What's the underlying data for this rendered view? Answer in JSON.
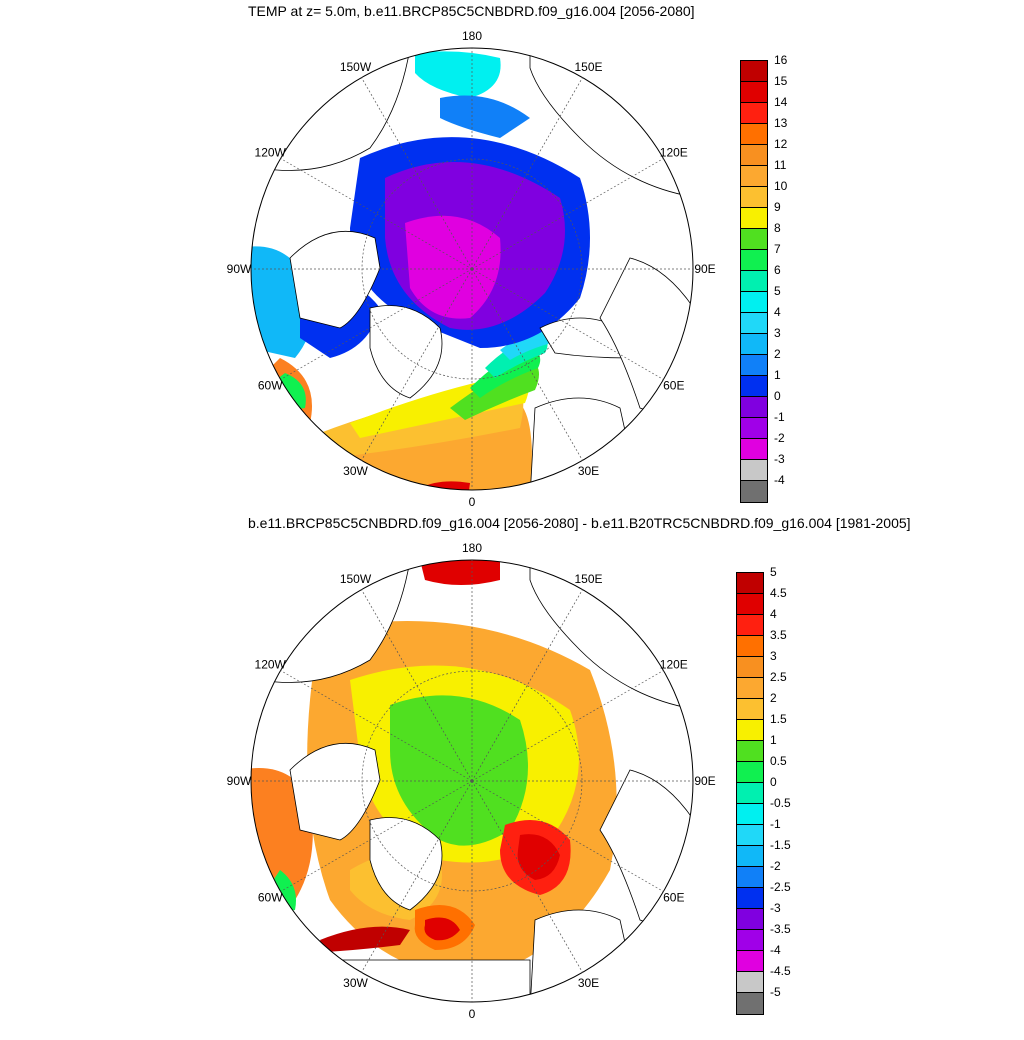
{
  "panels": [
    {
      "id": "top",
      "title": "TEMP at z=   5.0m, b.e11.BRCP85C5CNBDRD.f09_g16.004 [2056-2080]",
      "colorbar": {
        "labels": [
          "16",
          "15",
          "14",
          "13",
          "12",
          "11",
          "10",
          "9",
          "8",
          "7",
          "6",
          "5",
          "4",
          "3",
          "2",
          "1",
          "0",
          "-1",
          "-2",
          "-3",
          "-4"
        ],
        "colors": [
          "#c00000",
          "#e00000",
          "#ff2010",
          "#ff7000",
          "#f89020",
          "#fca830",
          "#fcc030",
          "#f8f000",
          "#50e020",
          "#10f050",
          "#00f0b0",
          "#00f0f0",
          "#20d8f8",
          "#10b8f8",
          "#1080f8",
          "#0030f0",
          "#8000e0",
          "#a000e8",
          "#e000e0",
          "#c8c8c8",
          "#707070"
        ]
      }
    },
    {
      "id": "bottom",
      "title": "b.e11.BRCP85C5CNBDRD.f09_g16.004 [2056-2080] - b.e11.B20TRC5CNBDRD.f09_g16.004 [1981-2005]",
      "colorbar": {
        "labels": [
          "5",
          "4.5",
          "4",
          "3.5",
          "3",
          "2.5",
          "2",
          "1.5",
          "1",
          "0.5",
          "0",
          "-0.5",
          "-1",
          "-1.5",
          "-2",
          "-2.5",
          "-3",
          "-3.5",
          "-4",
          "-4.5",
          "-5"
        ],
        "colors": [
          "#c00000",
          "#e00000",
          "#ff2010",
          "#ff7000",
          "#f89020",
          "#fca830",
          "#fcc030",
          "#f8f000",
          "#50e020",
          "#10f050",
          "#00f0b0",
          "#00f0f0",
          "#20d8f8",
          "#10b8f8",
          "#1080f8",
          "#0030f0",
          "#8000e0",
          "#a000e8",
          "#e000e0",
          "#c8c8c8",
          "#707070"
        ]
      }
    }
  ],
  "longitude_labels": [
    "180",
    "150E",
    "120E",
    "90E",
    "60E",
    "30E",
    "0",
    "30W",
    "60W",
    "90W",
    "120W",
    "150W"
  ]
}
